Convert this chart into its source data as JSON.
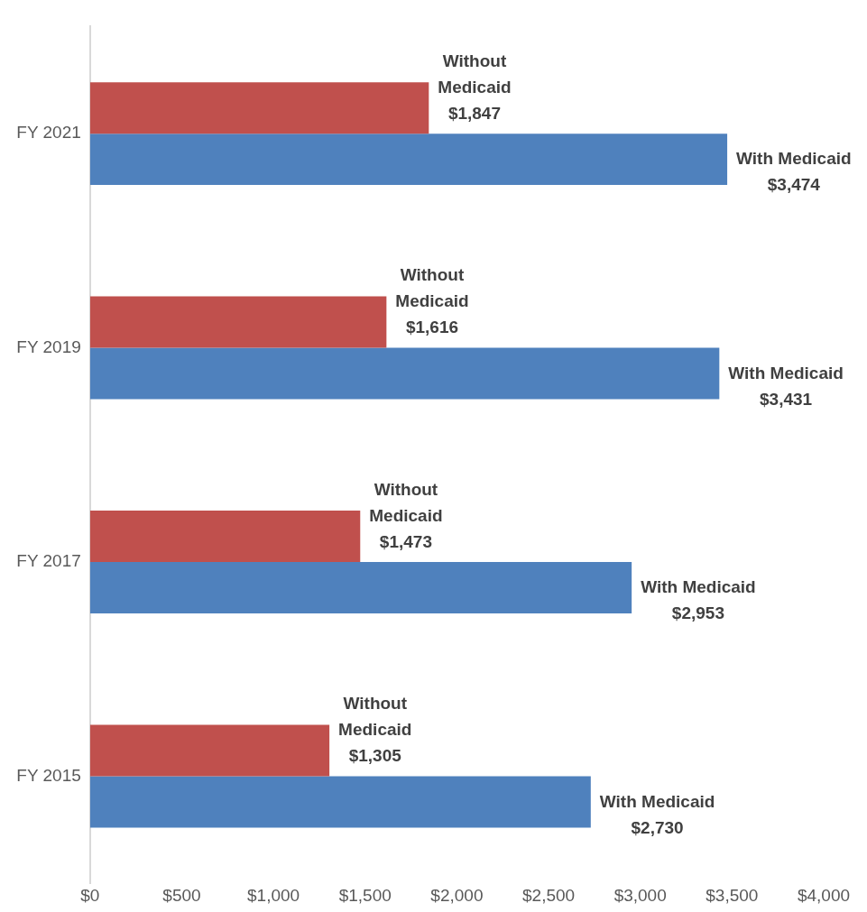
{
  "chart_data": {
    "type": "bar",
    "orientation": "horizontal",
    "categories": [
      "FY 2021",
      "FY 2019",
      "FY 2017",
      "FY 2015"
    ],
    "series": [
      {
        "name": "Without Medicaid",
        "color": "#c0504d",
        "values": [
          1847,
          1616,
          1473,
          1305
        ],
        "value_labels": [
          "$1,847",
          "$1,616",
          "$1,473",
          "$1,305"
        ]
      },
      {
        "name": "With Medicaid",
        "color": "#4f81bd",
        "values": [
          3474,
          3431,
          2953,
          2730
        ],
        "value_labels": [
          "$3,474",
          "$3,431",
          "$2,953",
          "$2,730"
        ]
      }
    ],
    "xlim": [
      0,
      4000
    ],
    "xticks": [
      {
        "value": 0,
        "label": "$0"
      },
      {
        "value": 500,
        "label": "$500"
      },
      {
        "value": 1000,
        "label": "$1,000"
      },
      {
        "value": 1500,
        "label": "$1,500"
      },
      {
        "value": 2000,
        "label": "$2,000"
      },
      {
        "value": 2500,
        "label": "$2,500"
      },
      {
        "value": 3000,
        "label": "$3,000"
      },
      {
        "value": 3500,
        "label": "$3,500"
      },
      {
        "value": 4000,
        "label": "$4,000"
      }
    ],
    "grid": false,
    "legend": false
  }
}
